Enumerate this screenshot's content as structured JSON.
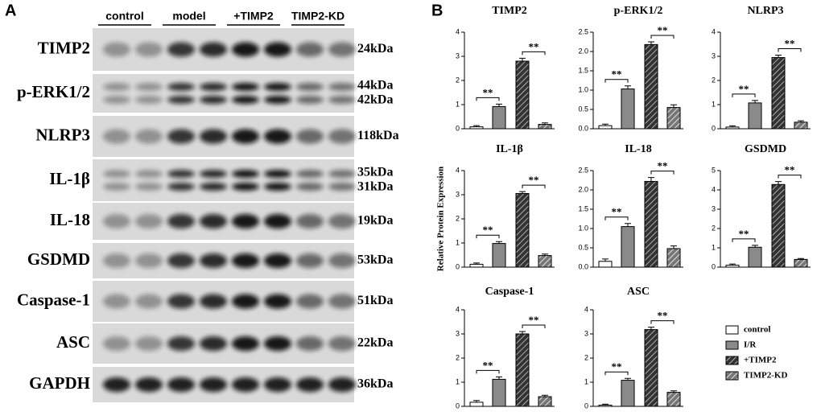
{
  "panel_labels": [
    "A",
    "B"
  ],
  "blot": {
    "groups": [
      "control",
      "model",
      "+TIMP2",
      "TIMP2-KD"
    ],
    "rows": [
      {
        "protein": "TIMP2",
        "kda": [
          "24kDa"
        ]
      },
      {
        "protein": "p-ERK1/2",
        "kda": [
          "44kDa",
          "42kDa"
        ]
      },
      {
        "protein": "NLRP3",
        "kda": [
          "118kDa"
        ]
      },
      {
        "protein": "IL-1β",
        "kda": [
          "35kDa",
          "31kDa"
        ]
      },
      {
        "protein": "IL-18",
        "kda": [
          "19kDa"
        ]
      },
      {
        "protein": "GSDMD",
        "kda": [
          "53kDa"
        ]
      },
      {
        "protein": "Caspase-1",
        "kda": [
          "51kDa"
        ]
      },
      {
        "protein": "ASC",
        "kda": [
          "22kDa"
        ]
      },
      {
        "protein": "GAPDH",
        "kda": [
          "36kDa"
        ]
      }
    ]
  },
  "y_axis_label": "Relative Protein Expression",
  "legend": [
    "control",
    "I/R",
    "+TIMP2",
    "TIMP2-KD"
  ],
  "chart_data": [
    {
      "type": "bar",
      "title": "TIMP2",
      "values": [
        0.08,
        0.92,
        2.8,
        0.18
      ],
      "errors": [
        0.05,
        0.1,
        0.12,
        0.06
      ],
      "ylim": [
        0,
        4
      ],
      "yticks": [
        0,
        1,
        2,
        3,
        4
      ],
      "annotations": [
        "**",
        "**"
      ]
    },
    {
      "type": "bar",
      "title": "p-ERK1/2",
      "values": [
        0.08,
        1.03,
        2.18,
        0.55
      ],
      "errors": [
        0.04,
        0.08,
        0.07,
        0.07
      ],
      "ylim": [
        0,
        2.5
      ],
      "yticks": [
        {
          "value": 0,
          "label": "0.0"
        },
        {
          "value": 0.5,
          "label": "0.5"
        },
        {
          "value": 1,
          "label": "1.0"
        },
        {
          "value": 1.5,
          "label": "1.5"
        },
        {
          "value": 2,
          "label": "2.0"
        },
        {
          "value": 2.5,
          "label": "2.5"
        }
      ],
      "annotations": [
        "**",
        "**"
      ]
    },
    {
      "type": "bar",
      "title": "NLRP3",
      "values": [
        0.07,
        1.07,
        2.95,
        0.27
      ],
      "errors": [
        0.05,
        0.1,
        0.1,
        0.06
      ],
      "ylim": [
        0,
        4
      ],
      "yticks": [
        0,
        1,
        2,
        3,
        4
      ],
      "annotations": [
        "**",
        "**"
      ]
    },
    {
      "type": "bar",
      "title": "IL-1β",
      "values": [
        0.12,
        0.98,
        3.05,
        0.48
      ],
      "errors": [
        0.05,
        0.08,
        0.08,
        0.06
      ],
      "ylim": [
        0,
        4
      ],
      "yticks": [
        0,
        1,
        2,
        3,
        4
      ],
      "annotations": [
        "**",
        "**"
      ]
    },
    {
      "type": "bar",
      "title": "IL-18",
      "values": [
        0.15,
        1.05,
        2.22,
        0.48
      ],
      "errors": [
        0.06,
        0.08,
        0.1,
        0.07
      ],
      "ylim": [
        0,
        2.5
      ],
      "yticks": [
        {
          "value": 0,
          "label": "0.0"
        },
        {
          "value": 0.5,
          "label": "0.5"
        },
        {
          "value": 1,
          "label": "1.0"
        },
        {
          "value": 1.5,
          "label": "1.5"
        },
        {
          "value": 2,
          "label": "2.0"
        },
        {
          "value": 2.5,
          "label": "2.5"
        }
      ],
      "annotations": [
        "**",
        "**"
      ]
    },
    {
      "type": "bar",
      "title": "GSDMD",
      "values": [
        0.1,
        1.03,
        4.28,
        0.4
      ],
      "errors": [
        0.06,
        0.1,
        0.15,
        0.05
      ],
      "ylim": [
        0,
        5
      ],
      "yticks": [
        0,
        1,
        2,
        3,
        4,
        5
      ],
      "annotations": [
        "**",
        "**"
      ]
    },
    {
      "type": "bar",
      "title": "Caspase-1",
      "values": [
        0.17,
        1.12,
        3.0,
        0.4
      ],
      "errors": [
        0.07,
        0.1,
        0.1,
        0.06
      ],
      "ylim": [
        0,
        4
      ],
      "yticks": [
        0,
        1,
        2,
        3,
        4
      ],
      "annotations": [
        "**",
        "**"
      ]
    },
    {
      "type": "bar",
      "title": "ASC",
      "values": [
        0.05,
        1.08,
        3.18,
        0.58
      ],
      "errors": [
        0.04,
        0.08,
        0.1,
        0.06
      ],
      "ylim": [
        0,
        4
      ],
      "yticks": [
        0,
        1,
        2,
        3,
        4
      ],
      "annotations": [
        "**",
        "**"
      ]
    }
  ]
}
